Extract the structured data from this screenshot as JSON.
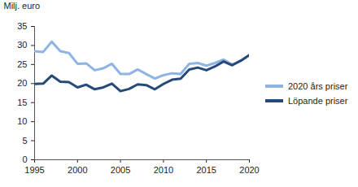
{
  "chart_data": {
    "type": "line",
    "ylabel": "Milj. euro",
    "x": [
      1995,
      1996,
      1997,
      1998,
      1999,
      2000,
      2001,
      2002,
      2003,
      2004,
      2005,
      2006,
      2007,
      2008,
      2009,
      2010,
      2011,
      2012,
      2013,
      2014,
      2015,
      2016,
      2017,
      2018,
      2019,
      2020
    ],
    "series": [
      {
        "name": "2020 års priser",
        "color": "#8eb4e3",
        "values": [
          28.5,
          28.3,
          31,
          28.5,
          28,
          25.2,
          25.3,
          23.5,
          24,
          25.2,
          22.5,
          22.5,
          23.7,
          22.5,
          21.3,
          22.2,
          22.7,
          22.5,
          25.2,
          25.4,
          24.7,
          25.4,
          26.3,
          25,
          26,
          27.5
        ]
      },
      {
        "name": "Löpande priser",
        "color": "#254a7a",
        "values": [
          19.9,
          20,
          22.1,
          20.5,
          20.4,
          19,
          19.7,
          18.5,
          19,
          20,
          18,
          18.6,
          19.8,
          19.6,
          18.5,
          19.9,
          21,
          21.3,
          23.7,
          24.2,
          23.5,
          24.5,
          25.8,
          24.8,
          26,
          27.5
        ]
      }
    ],
    "xlim": [
      1995,
      2020
    ],
    "xticks": [
      1995,
      2000,
      2005,
      2010,
      2015,
      2020
    ],
    "ylim": [
      0,
      35
    ],
    "yticks": [
      0,
      5,
      10,
      15,
      20,
      25,
      30,
      35
    ],
    "grid": false,
    "legend": "right"
  }
}
